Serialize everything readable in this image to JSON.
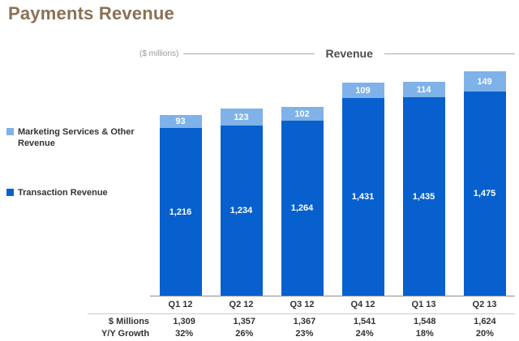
{
  "page_title": "Payments Revenue",
  "chart_header": {
    "units_label": "($ millions)",
    "title": "Revenue"
  },
  "legend": [
    {
      "label": "Marketing Services & Other Revenue",
      "color": "#7fb2e8"
    },
    {
      "label": "Transaction Revenue",
      "color": "#0760ce"
    }
  ],
  "chart_data": {
    "type": "bar",
    "stacked": true,
    "title": "Revenue",
    "units": "$ millions",
    "categories": [
      "Q1 12",
      "Q2 12",
      "Q3 12",
      "Q4 12",
      "Q1 13",
      "Q2 13"
    ],
    "series": [
      {
        "name": "Transaction Revenue",
        "color": "#0760ce",
        "values": [
          1216,
          1234,
          1264,
          1431,
          1435,
          1475
        ]
      },
      {
        "name": "Marketing Services & Other Revenue",
        "color": "#7fb2e8",
        "values": [
          93,
          123,
          102,
          109,
          114,
          149
        ]
      }
    ],
    "totals": [
      1309,
      1357,
      1367,
      1541,
      1548,
      1624
    ],
    "ylim": [
      0,
      1650
    ],
    "legend_position": "left",
    "grid": false
  },
  "table": {
    "rows": [
      {
        "label": "$ Millions",
        "values": [
          "1,309",
          "1,357",
          "1,367",
          "1,541",
          "1,548",
          "1,624"
        ]
      },
      {
        "label": "Y/Y Growth",
        "values": [
          "32%",
          "26%",
          "23%",
          "24%",
          "18%",
          "20%"
        ]
      }
    ]
  }
}
